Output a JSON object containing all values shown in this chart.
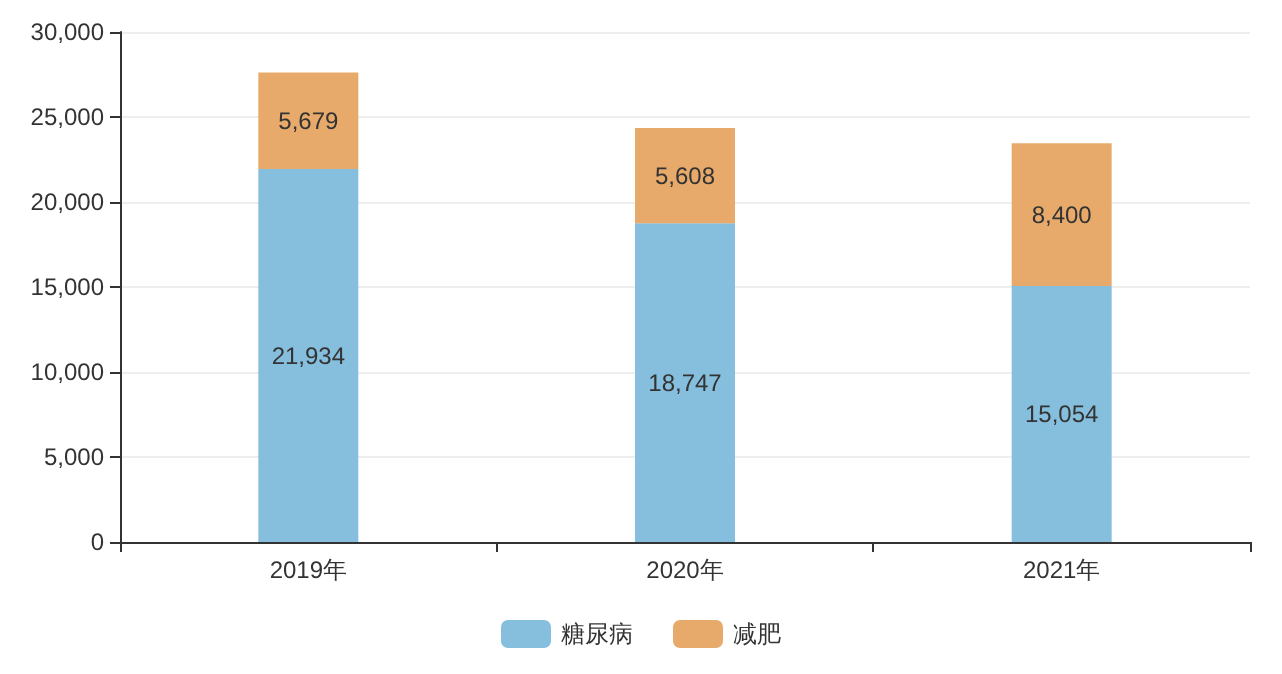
{
  "chart_data": {
    "type": "bar",
    "stacked": true,
    "categories": [
      "2019年",
      "2020年",
      "2021年"
    ],
    "series": [
      {
        "name": "糖尿病",
        "color": "#86bedd",
        "values": [
          21934,
          18747,
          15054
        ],
        "value_labels": [
          "21,934",
          "18,747",
          "15,054"
        ]
      },
      {
        "name": "减肥",
        "color": "#e8aa6b",
        "values": [
          5679,
          5608,
          8400
        ],
        "value_labels": [
          "5,679",
          "5,608",
          "8,400"
        ]
      }
    ],
    "ylim": [
      0,
      30000
    ],
    "yticks": [
      {
        "value": 0,
        "label": "0"
      },
      {
        "value": 5000,
        "label": "5,000"
      },
      {
        "value": 10000,
        "label": "10,000"
      },
      {
        "value": 15000,
        "label": "15,000"
      },
      {
        "value": 20000,
        "label": "20,000"
      },
      {
        "value": 25000,
        "label": "25,000"
      },
      {
        "value": 30000,
        "label": "30,000"
      }
    ],
    "grid": "y",
    "legend": "bottom"
  }
}
